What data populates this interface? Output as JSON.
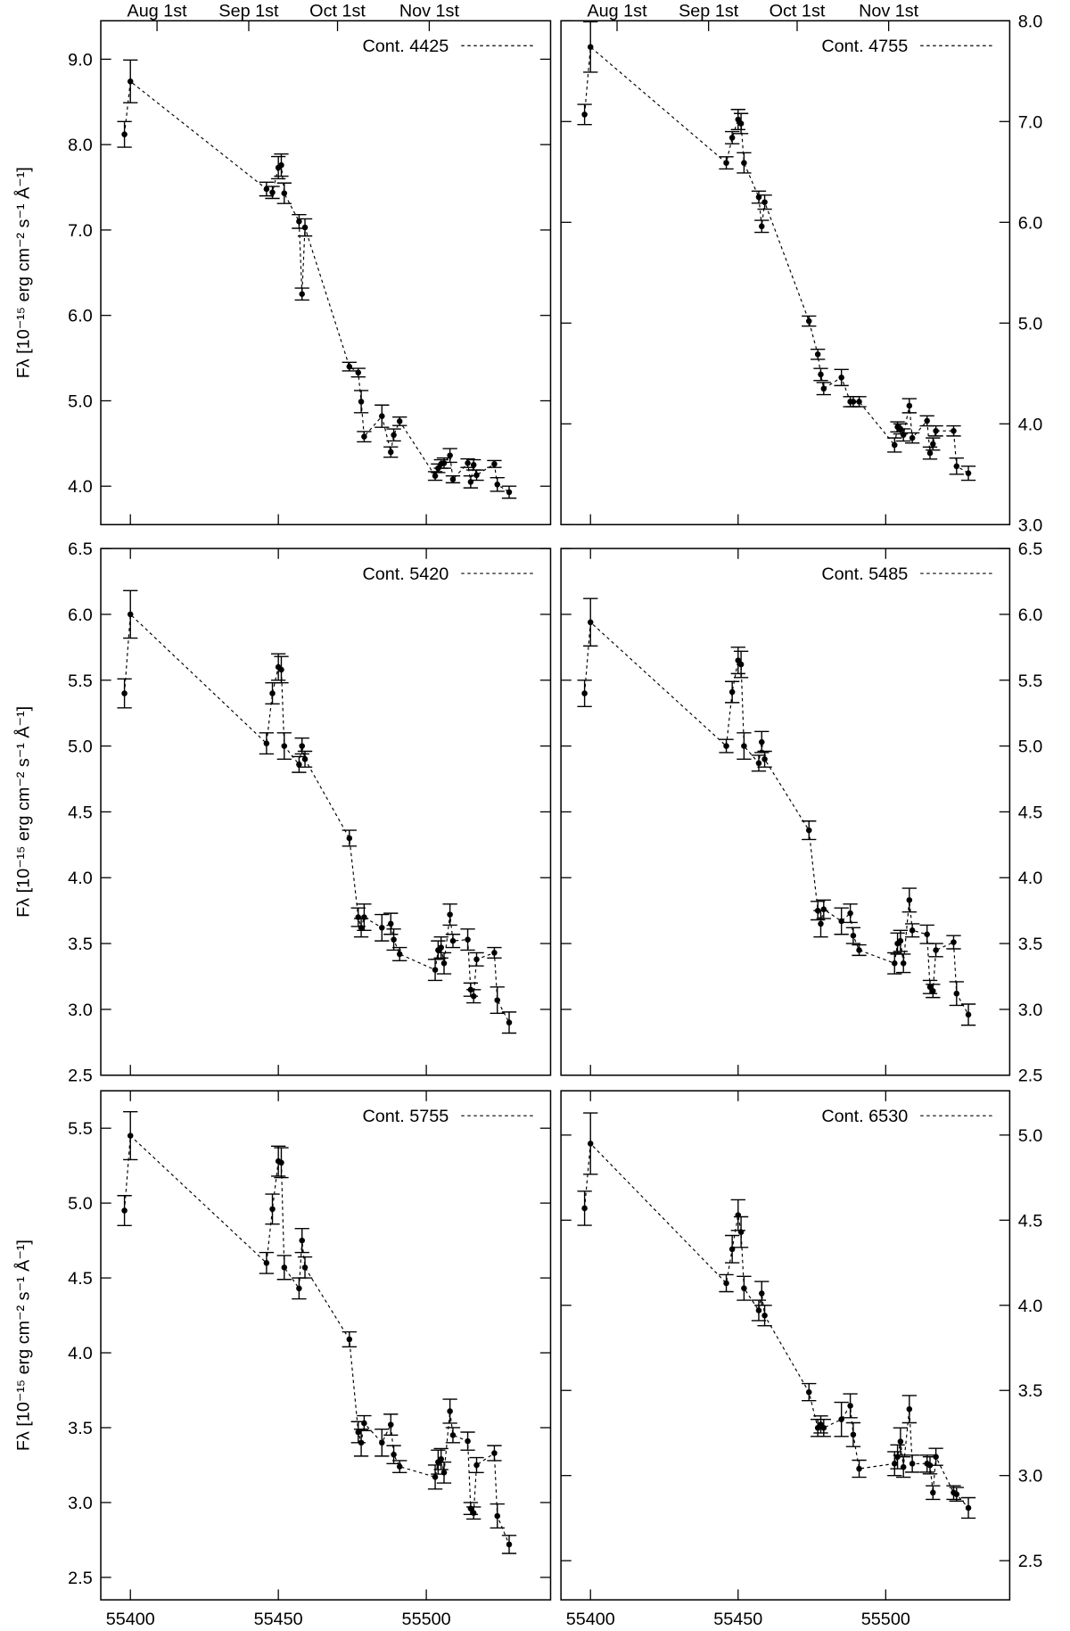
{
  "chart_data": [
    {
      "type": "scatter",
      "ylabel": "Fλ [10⁻¹⁵ erg cm⁻² s⁻¹ Å⁻¹]",
      "legend": "upper right",
      "yaxis_side": "left",
      "xtick_labels": false,
      "xlim": [
        55390,
        55542
      ],
      "xticks": [
        55400,
        55450,
        55500
      ],
      "x2ticks": [
        {
          "value": 55409,
          "label": "Aug 1st"
        },
        {
          "value": 55440,
          "label": "Sep 1st"
        },
        {
          "value": 55470,
          "label": "Oct 1st"
        },
        {
          "value": 55501,
          "label": "Nov 1st"
        }
      ],
      "ylim": [
        3.55,
        9.45
      ],
      "yticks": [
        {
          "value": 4,
          "label": "4.0"
        },
        {
          "value": 5,
          "label": "5.0"
        },
        {
          "value": 6,
          "label": "6.0"
        },
        {
          "value": 7,
          "label": "7.0"
        },
        {
          "value": 8,
          "label": "8.0"
        },
        {
          "value": 9,
          "label": "9.0"
        }
      ],
      "x": [
        55398,
        55400,
        55446,
        55448,
        55450,
        55451,
        55452,
        55457,
        55458,
        55459,
        55474,
        55477,
        55478,
        55479,
        55485,
        55488,
        55489,
        55491,
        55503,
        55504,
        55505,
        55506,
        55508,
        55509,
        55514,
        55515,
        55516,
        55517,
        55523,
        55524,
        55528
      ],
      "series": [
        {
          "name": "Cont. 4425",
          "color": "#000000",
          "values": [
            8.12,
            8.74,
            7.48,
            7.44,
            7.73,
            7.76,
            7.43,
            7.1,
            6.25,
            7.03,
            5.4,
            5.33,
            4.99,
            4.58,
            4.82,
            4.4,
            4.6,
            4.76,
            4.12,
            4.21,
            4.26,
            4.27,
            4.36,
            4.08,
            4.27,
            4.05,
            4.25,
            4.13,
            4.26,
            4.02,
            3.93
          ],
          "errors": [
            0.15,
            0.25,
            0.08,
            0.07,
            0.13,
            0.13,
            0.12,
            0.08,
            0.07,
            0.1,
            0.05,
            0.05,
            0.13,
            0.06,
            0.13,
            0.06,
            0.07,
            0.05,
            0.05,
            0.05,
            0.05,
            0.06,
            0.08,
            0.04,
            0.05,
            0.07,
            0.06,
            0.06,
            0.04,
            0.08,
            0.07
          ]
        }
      ]
    },
    {
      "type": "scatter",
      "legend": "upper right",
      "yaxis_side": "right",
      "xtick_labels": false,
      "xlim": [
        55390,
        55542
      ],
      "xticks": [
        55400,
        55450,
        55500
      ],
      "x2ticks": [
        {
          "value": 55409,
          "label": "Aug 1st"
        },
        {
          "value": 55440,
          "label": "Sep 1st"
        },
        {
          "value": 55470,
          "label": "Oct 1st"
        },
        {
          "value": 55501,
          "label": "Nov 1st"
        }
      ],
      "ylim": [
        3,
        8
      ],
      "yticks": [
        {
          "value": 3,
          "label": "3.0"
        },
        {
          "value": 4,
          "label": "4.0"
        },
        {
          "value": 5,
          "label": "5.0"
        },
        {
          "value": 6,
          "label": "6.0"
        },
        {
          "value": 7,
          "label": "7.0"
        },
        {
          "value": 8,
          "label": "8.0"
        }
      ],
      "x": [
        55398,
        55400,
        55446,
        55448,
        55450,
        55451,
        55452,
        55457,
        55458,
        55459,
        55474,
        55477,
        55478,
        55479,
        55485,
        55488,
        55489,
        55491,
        55503,
        55504,
        55505,
        55506,
        55508,
        55509,
        55514,
        55515,
        55516,
        55517,
        55523,
        55524,
        55528
      ],
      "series": [
        {
          "name": "Cont. 4755",
          "color": "#000000",
          "values": [
            7.07,
            7.74,
            6.59,
            6.84,
            7.02,
            6.98,
            6.59,
            6.25,
            5.96,
            6.2,
            5.02,
            4.69,
            4.49,
            4.35,
            4.46,
            4.22,
            4.22,
            4.22,
            3.79,
            3.97,
            3.95,
            3.89,
            4.18,
            3.86,
            4.03,
            3.71,
            3.8,
            3.93,
            3.93,
            3.58,
            3.51
          ],
          "errors": [
            0.1,
            0.25,
            0.06,
            0.06,
            0.1,
            0.1,
            0.1,
            0.06,
            0.06,
            0.07,
            0.05,
            0.05,
            0.06,
            0.06,
            0.08,
            0.05,
            0.05,
            0.05,
            0.07,
            0.05,
            0.05,
            0.06,
            0.07,
            0.05,
            0.05,
            0.06,
            0.06,
            0.05,
            0.05,
            0.08,
            0.07
          ]
        }
      ]
    },
    {
      "type": "scatter",
      "ylabel": "Fλ [10⁻¹⁵ erg cm⁻² s⁻¹ Å⁻¹]",
      "legend": "upper right",
      "yaxis_side": "left",
      "xtick_labels": false,
      "xlim": [
        55390,
        55542
      ],
      "xticks": [
        55400,
        55450,
        55500
      ],
      "ylim": [
        2.5,
        6.5
      ],
      "yticks": [
        2.5,
        {
          "value": 3,
          "label": "3.0"
        },
        3.5,
        {
          "value": 4,
          "label": "4.0"
        },
        4.5,
        {
          "value": 5,
          "label": "5.0"
        },
        5.5,
        {
          "value": 6,
          "label": "6.0"
        },
        6.5
      ],
      "x": [
        55398,
        55400,
        55446,
        55448,
        55450,
        55451,
        55452,
        55457,
        55458,
        55459,
        55474,
        55477,
        55478,
        55479,
        55485,
        55488,
        55489,
        55491,
        55503,
        55504,
        55505,
        55506,
        55508,
        55509,
        55514,
        55515,
        55516,
        55517,
        55523,
        55524,
        55528
      ],
      "series": [
        {
          "name": "Cont. 5420",
          "color": "#000000",
          "values": [
            5.4,
            6.0,
            5.02,
            5.4,
            5.6,
            5.58,
            5.0,
            4.86,
            5.0,
            4.9,
            4.3,
            3.7,
            3.62,
            3.7,
            3.62,
            3.65,
            3.53,
            3.42,
            3.3,
            3.45,
            3.47,
            3.35,
            3.72,
            3.52,
            3.53,
            3.15,
            3.1,
            3.38,
            3.43,
            3.07,
            2.9
          ],
          "errors": [
            0.11,
            0.18,
            0.08,
            0.08,
            0.1,
            0.1,
            0.1,
            0.06,
            0.06,
            0.06,
            0.06,
            0.07,
            0.07,
            0.1,
            0.1,
            0.08,
            0.08,
            0.05,
            0.08,
            0.07,
            0.08,
            0.08,
            0.08,
            0.05,
            0.08,
            0.05,
            0.05,
            0.05,
            0.04,
            0.1,
            0.08
          ]
        }
      ]
    },
    {
      "type": "scatter",
      "legend": "upper right",
      "yaxis_side": "right",
      "xtick_labels": false,
      "xlim": [
        55390,
        55542
      ],
      "xticks": [
        55400,
        55450,
        55500
      ],
      "ylim": [
        2.5,
        6.5
      ],
      "yticks": [
        2.5,
        {
          "value": 3,
          "label": "3.0"
        },
        3.5,
        {
          "value": 4,
          "label": "4.0"
        },
        4.5,
        {
          "value": 5,
          "label": "5.0"
        },
        5.5,
        {
          "value": 6,
          "label": "6.0"
        },
        6.5
      ],
      "x": [
        55398,
        55400,
        55446,
        55448,
        55450,
        55451,
        55452,
        55457,
        55458,
        55459,
        55474,
        55477,
        55478,
        55479,
        55485,
        55488,
        55489,
        55491,
        55503,
        55504,
        55505,
        55506,
        55508,
        55509,
        55514,
        55515,
        55516,
        55517,
        55523,
        55524,
        55528
      ],
      "series": [
        {
          "name": "Cont. 5485",
          "color": "#000000",
          "values": [
            5.4,
            5.94,
            5.0,
            5.41,
            5.65,
            5.62,
            5.0,
            4.87,
            5.03,
            4.9,
            4.36,
            3.75,
            3.65,
            3.76,
            3.67,
            3.73,
            3.56,
            3.45,
            3.35,
            3.5,
            3.52,
            3.35,
            3.83,
            3.6,
            3.57,
            3.17,
            3.14,
            3.45,
            3.51,
            3.12,
            2.96
          ],
          "errors": [
            0.1,
            0.18,
            0.05,
            0.08,
            0.1,
            0.1,
            0.1,
            0.06,
            0.08,
            0.06,
            0.07,
            0.07,
            0.1,
            0.07,
            0.1,
            0.07,
            0.06,
            0.04,
            0.08,
            0.08,
            0.08,
            0.07,
            0.09,
            0.05,
            0.07,
            0.05,
            0.05,
            0.05,
            0.05,
            0.09,
            0.08
          ]
        }
      ]
    },
    {
      "type": "scatter",
      "ylabel": "Fλ [10⁻¹⁵ erg cm⁻² s⁻¹ Å⁻¹]",
      "xlabel": "MJD",
      "legend": "upper right",
      "yaxis_side": "left",
      "xtick_labels": true,
      "xlim": [
        55390,
        55542
      ],
      "xticks": [
        55400,
        55450,
        55500
      ],
      "ylim": [
        2.35,
        5.75
      ],
      "yticks": [
        2.5,
        {
          "value": 3,
          "label": "3.0"
        },
        3.5,
        {
          "value": 4,
          "label": "4.0"
        },
        4.5,
        {
          "value": 5,
          "label": "5.0"
        },
        5.5
      ],
      "x": [
        55398,
        55400,
        55446,
        55448,
        55450,
        55451,
        55452,
        55457,
        55458,
        55459,
        55474,
        55477,
        55478,
        55479,
        55485,
        55488,
        55489,
        55491,
        55503,
        55504,
        55505,
        55506,
        55508,
        55509,
        55514,
        55515,
        55516,
        55517,
        55523,
        55524,
        55528
      ],
      "series": [
        {
          "name": "Cont. 5755",
          "color": "#000000",
          "values": [
            4.95,
            5.45,
            4.6,
            4.96,
            5.28,
            5.27,
            4.57,
            4.43,
            4.75,
            4.57,
            4.09,
            3.47,
            3.4,
            3.53,
            3.4,
            3.52,
            3.32,
            3.24,
            3.17,
            3.27,
            3.29,
            3.2,
            3.61,
            3.45,
            3.41,
            2.96,
            2.93,
            3.25,
            3.33,
            2.91,
            2.72
          ],
          "errors": [
            0.1,
            0.16,
            0.07,
            0.1,
            0.1,
            0.1,
            0.08,
            0.07,
            0.08,
            0.07,
            0.05,
            0.07,
            0.09,
            0.05,
            0.09,
            0.07,
            0.06,
            0.04,
            0.08,
            0.08,
            0.07,
            0.07,
            0.08,
            0.05,
            0.06,
            0.04,
            0.04,
            0.05,
            0.05,
            0.08,
            0.06
          ]
        }
      ]
    },
    {
      "type": "scatter",
      "xlabel": "MJD",
      "legend": "upper right",
      "yaxis_side": "right",
      "xtick_labels": true,
      "xlim": [
        55390,
        55542
      ],
      "xticks": [
        55400,
        55450,
        55500
      ],
      "ylim": [
        2.27,
        5.26
      ],
      "yticks": [
        2.5,
        {
          "value": 3,
          "label": "3.0"
        },
        3.5,
        {
          "value": 4,
          "label": "4.0"
        },
        4.5,
        {
          "value": 5,
          "label": "5.0"
        }
      ],
      "x": [
        55398,
        55400,
        55446,
        55448,
        55450,
        55451,
        55452,
        55457,
        55458,
        55459,
        55474,
        55477,
        55478,
        55479,
        55485,
        55488,
        55489,
        55491,
        55503,
        55504,
        55505,
        55506,
        55508,
        55509,
        55514,
        55515,
        55516,
        55517,
        55523,
        55524,
        55528
      ],
      "series": [
        {
          "name": "Cont. 6530",
          "color": "#000000",
          "values": [
            4.57,
            4.95,
            4.13,
            4.33,
            4.53,
            4.43,
            4.1,
            3.97,
            4.07,
            3.94,
            3.49,
            3.28,
            3.3,
            3.28,
            3.33,
            3.41,
            3.24,
            3.04,
            3.07,
            3.11,
            3.2,
            3.05,
            3.39,
            3.07,
            3.07,
            3.06,
            2.9,
            3.11,
            2.9,
            2.89,
            2.81
          ],
          "errors": [
            0.1,
            0.18,
            0.05,
            0.08,
            0.09,
            0.09,
            0.07,
            0.06,
            0.07,
            0.06,
            0.05,
            0.05,
            0.05,
            0.05,
            0.1,
            0.07,
            0.07,
            0.05,
            0.07,
            0.07,
            0.08,
            0.06,
            0.08,
            0.05,
            0.05,
            0.05,
            0.04,
            0.05,
            0.04,
            0.04,
            0.06
          ]
        }
      ]
    }
  ]
}
